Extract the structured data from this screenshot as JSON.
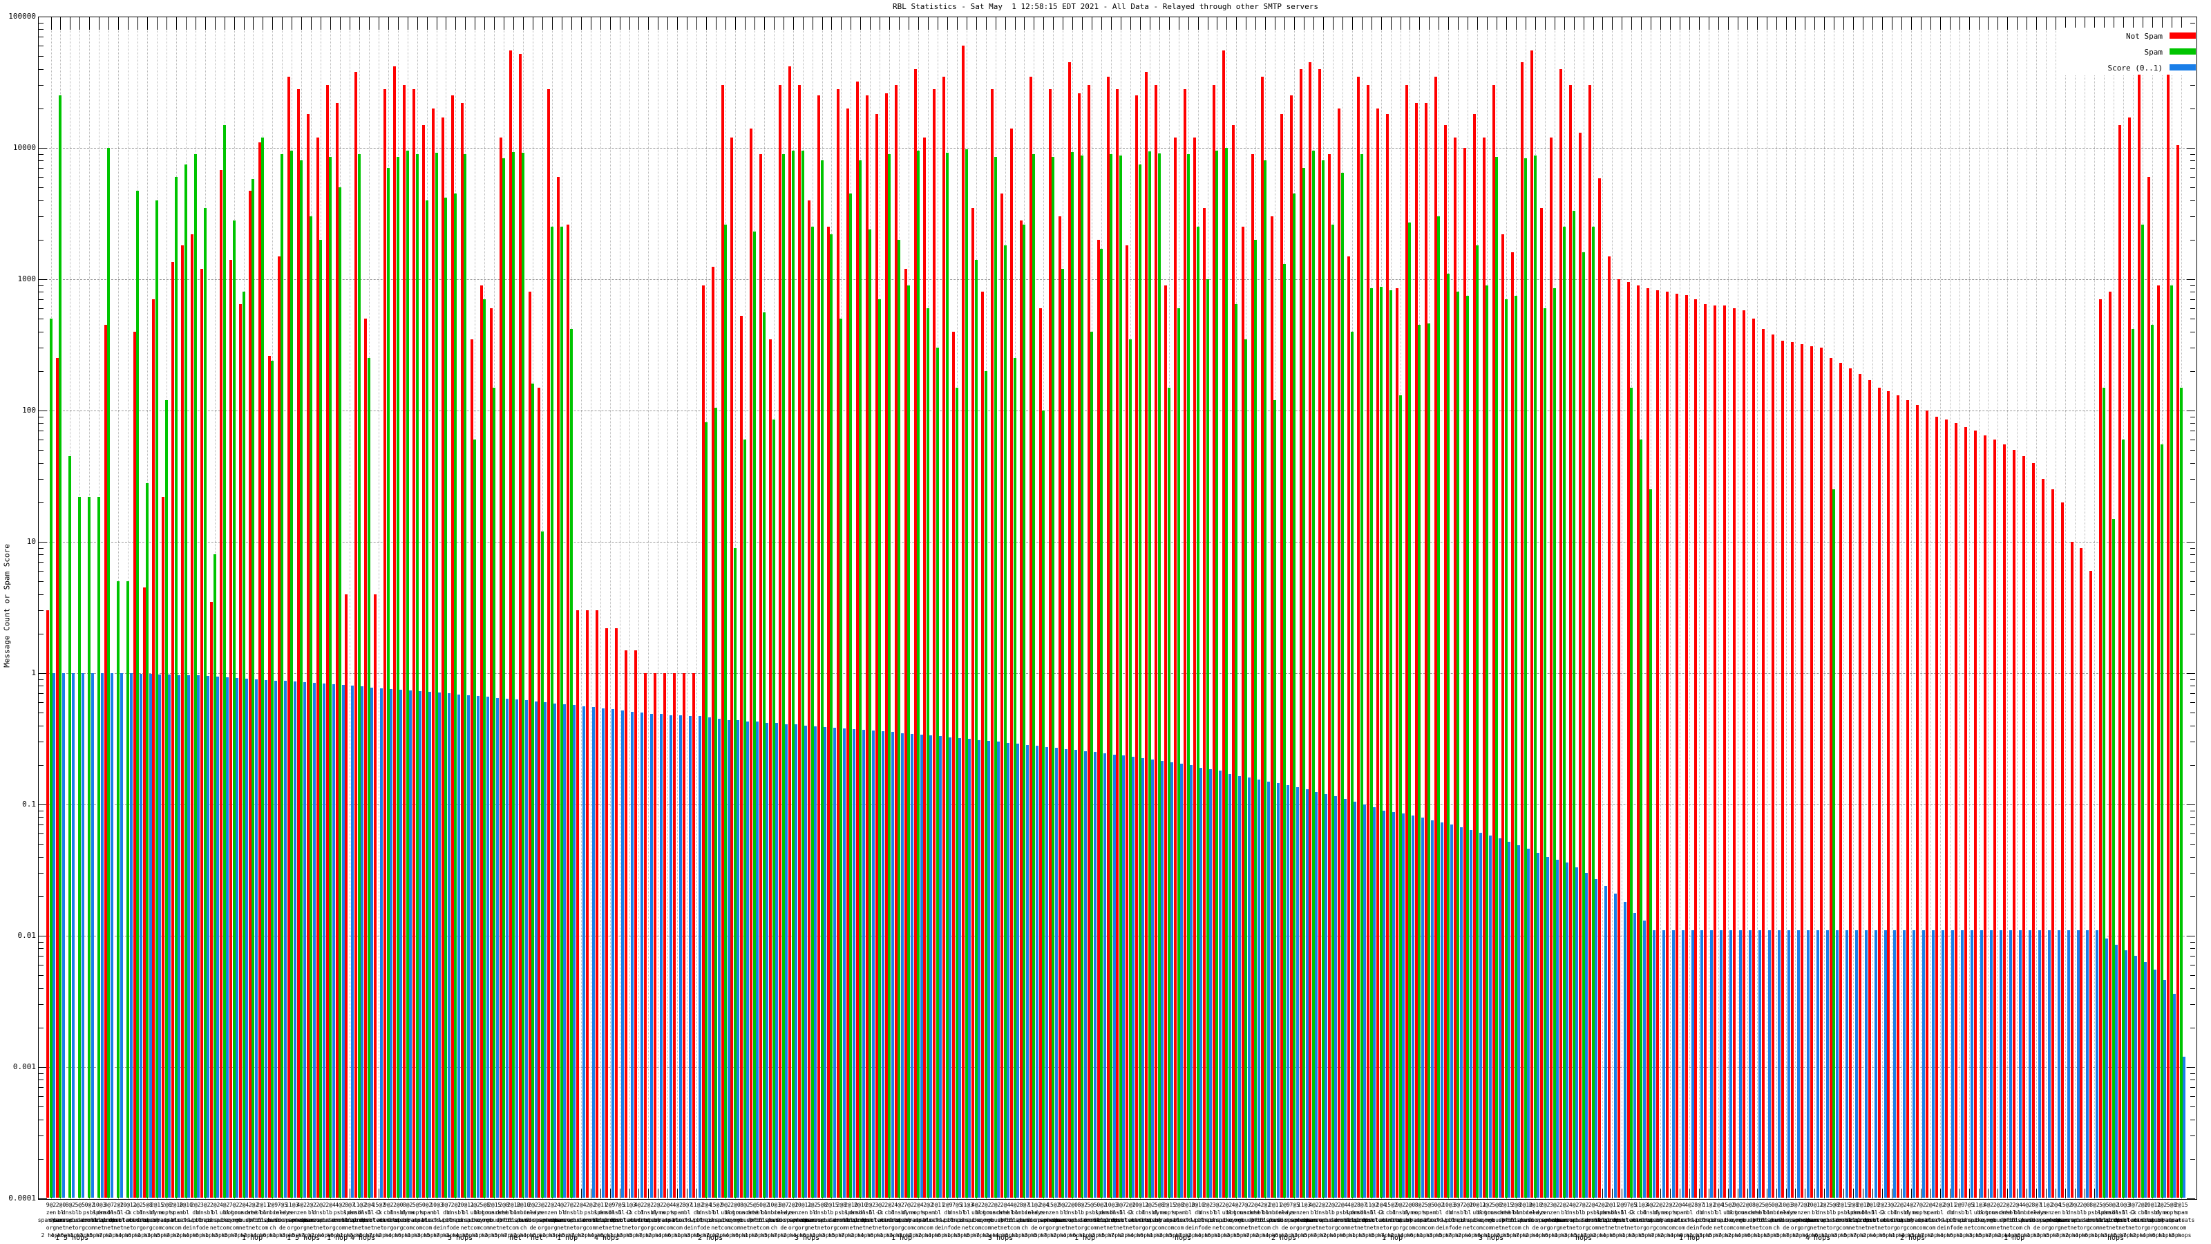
{
  "title": "RBL Statistics - Sat May  1 12:58:15 EDT 2021 - All Data - Relayed through other SMTP servers",
  "y_axis": {
    "label": "Message Count or Spam Score"
  },
  "legend": {
    "items": [
      {
        "label": "Not Spam",
        "color": "#ff0000"
      },
      {
        "label": "Spam",
        "color": "#00c400"
      },
      {
        "label": "Score (0..1)",
        "color": "#1a7ee8"
      }
    ]
  },
  "x_axis": {
    "label_pool": [
      "zen.spamhaus.org",
      "bl.spamcop.net",
      "dnsbl.sorbs.net",
      "b.barracudacentral.org",
      "psbl.surriel.com",
      "spam.dnsbl.sorbs.net",
      "dnsbl-1.uceprotect.net",
      "dnsbl-2.uceprotect.net",
      "ix.dnsbl.manitu.net",
      "cbl.abuseat.org",
      "dnsbl.dronebl.org",
      "dyna.spamrats.com",
      "noptr.spamrats.com",
      "spam.spamrats.com",
      "bl.blocklist.de",
      "db.wpbl.info",
      "dnsbl.inps.de",
      "bl.mailspike.net",
      "ubl.unsubscore.com",
      "bogons.cymru.com",
      "truncate.gbudb.net",
      "dnsbl.spfbl.net",
      "bl.nordspam.com",
      "combined.abuse.ch",
      "relays.bl.kundenserver.de",
      "zen.2.spamhaus.org"
    ],
    "counts_digits": [
      9,
      2,
      8,
      5,
      0,
      10,
      3,
      2,
      10,
      2,
      5,
      2,
      2,
      2,
      2,
      2,
      3,
      2,
      4,
      7,
      2,
      2,
      2,
      2,
      7,
      11,
      4,
      2,
      2,
      2,
      4,
      8,
      11,
      2,
      15
    ],
    "hops_row": [
      {
        "text": "1 5 hops",
        "x": 80
      },
      {
        "text": "1 hop",
        "x": 350
      },
      {
        "text": "1 5 hops",
        "x": 415
      },
      {
        "text": "1 hop",
        "x": 473
      },
      {
        "text": "4 hops",
        "x": 507
      },
      {
        "text": "5 hops",
        "x": 648
      },
      {
        "text": "net",
        "x": 737
      },
      {
        "text": "net",
        "x": 768
      },
      {
        "text": "1 hop",
        "x": 806
      },
      {
        "text": "4 hops",
        "x": 860
      },
      {
        "text": "2 hops",
        "x": 1010
      },
      {
        "text": "3 hops",
        "x": 1150
      },
      {
        "text": "1 hop",
        "x": 1290
      },
      {
        "text": "5 hops",
        "x": 1430
      },
      {
        "text": "1 hop",
        "x": 1555
      },
      {
        "text": "hops",
        "x": 1700
      },
      {
        "text": "2 hops",
        "x": 1840
      },
      {
        "text": "1 hop",
        "x": 2000
      },
      {
        "text": "3 hops",
        "x": 2140
      },
      {
        "text": "hops",
        "x": 2280
      },
      {
        "text": "1 hop",
        "x": 2430
      },
      {
        "text": "4 hops",
        "x": 2613
      },
      {
        "text": "2 hops",
        "x": 2750
      },
      {
        "text": "1 hop",
        "x": 2900
      },
      {
        "text": "hops",
        "x": 3050
      }
    ]
  },
  "chart_data": {
    "type": "bar",
    "log_scale": true,
    "ylim": [
      0.0001,
      100000
    ],
    "y_ticks": [
      "100000",
      "10000",
      "1000",
      "100",
      "10",
      "1",
      "0.1",
      "0.01",
      "0.001",
      "0.0001"
    ],
    "grid": "both",
    "legend_position": "top-right",
    "series_names": [
      "Not Spam",
      "Spam",
      "Score (0..1)"
    ],
    "series_colors": [
      "#ff0000",
      "#00c400",
      "#1a7ee8"
    ],
    "groups": [
      [
        3,
        500,
        1
      ],
      [
        250,
        25000,
        1
      ],
      [
        0,
        45,
        1
      ],
      [
        0,
        22,
        1
      ],
      [
        0,
        22,
        1
      ],
      [
        0,
        22,
        1
      ],
      [
        450,
        10000,
        1
      ],
      [
        0,
        5,
        1
      ],
      [
        0,
        5,
        1
      ],
      [
        400,
        4700,
        0.99
      ],
      [
        4.5,
        28,
        0.99
      ],
      [
        700,
        4000,
        0.98
      ],
      [
        22,
        120,
        0.98
      ],
      [
        1350,
        6000,
        0.97
      ],
      [
        1800,
        7500,
        0.96
      ],
      [
        2200,
        9000,
        0.96
      ],
      [
        1200,
        3500,
        0.95
      ],
      [
        3.5,
        8,
        0.94
      ],
      [
        6800,
        15000,
        0.93
      ],
      [
        1400,
        2800,
        0.92
      ],
      [
        650,
        800,
        0.91
      ],
      [
        4700,
        5800,
        0.9
      ],
      [
        11000,
        12000,
        0.89
      ],
      [
        260,
        240,
        0.88
      ],
      [
        1500,
        9000,
        0.87
      ],
      [
        35000,
        9500,
        0.86
      ],
      [
        28000,
        8000,
        0.85
      ],
      [
        18000,
        3000,
        0.84
      ],
      [
        12000,
        2000,
        0.83
      ],
      [
        30000,
        8500,
        0.82
      ],
      [
        22000,
        5000,
        0.81
      ],
      [
        4,
        0,
        0.8
      ],
      [
        38000,
        9000,
        0.79
      ],
      [
        500,
        250,
        0.78
      ],
      [
        4,
        0,
        0.77
      ],
      [
        28000,
        7000,
        0.76
      ],
      [
        42000,
        8500,
        0.75
      ],
      [
        30000,
        9500,
        0.74
      ],
      [
        28000,
        9000,
        0.73
      ],
      [
        15000,
        4000,
        0.72
      ],
      [
        20000,
        9200,
        0.71
      ],
      [
        17000,
        4200,
        0.7
      ],
      [
        25000,
        4500,
        0.69
      ],
      [
        22000,
        9000,
        0.68
      ],
      [
        350,
        60,
        0.67
      ],
      [
        900,
        700,
        0.66
      ],
      [
        600,
        150,
        0.65
      ],
      [
        12000,
        8300,
        0.64
      ],
      [
        55000,
        9300,
        0.63
      ],
      [
        52000,
        9200,
        0.62
      ],
      [
        800,
        160,
        0.61
      ],
      [
        150,
        12,
        0.6
      ],
      [
        28000,
        2500,
        0.59
      ],
      [
        6000,
        2500,
        0.58
      ],
      [
        2600,
        420,
        0.57
      ],
      [
        3,
        0,
        0.56
      ],
      [
        3,
        0,
        0.55
      ],
      [
        3,
        0,
        0.54
      ],
      [
        2.2,
        0,
        0.53
      ],
      [
        2.2,
        0,
        0.52
      ],
      [
        1.5,
        0,
        0.51
      ],
      [
        1.5,
        0,
        0.5
      ],
      [
        1,
        0,
        0.49
      ],
      [
        1,
        0,
        0.49
      ],
      [
        1,
        0,
        0.48
      ],
      [
        1,
        0,
        0.48
      ],
      [
        1,
        0,
        0.47
      ],
      [
        1,
        0,
        0.47
      ],
      [
        900,
        81,
        0.46
      ],
      [
        1250,
        105,
        0.45
      ],
      [
        30000,
        2600,
        0.44
      ],
      [
        12000,
        9,
        0.44
      ],
      [
        525,
        60,
        0.43
      ],
      [
        14000,
        2300,
        0.43
      ],
      [
        9000,
        560,
        0.42
      ],
      [
        350,
        85,
        0.42
      ],
      [
        30000,
        9000,
        0.41
      ],
      [
        42000,
        9500,
        0.41
      ],
      [
        30000,
        9500,
        0.4
      ],
      [
        4000,
        2500,
        0.395
      ],
      [
        25000,
        8000,
        0.39
      ],
      [
        2500,
        2200,
        0.385
      ],
      [
        28000,
        500,
        0.38
      ],
      [
        20000,
        4500,
        0.375
      ],
      [
        32000,
        8000,
        0.37
      ],
      [
        25000,
        2400,
        0.365
      ],
      [
        18000,
        700,
        0.36
      ],
      [
        26000,
        9000,
        0.355
      ],
      [
        30000,
        2000,
        0.35
      ],
      [
        1200,
        900,
        0.345
      ],
      [
        40000,
        9500,
        0.34
      ],
      [
        12000,
        600,
        0.335
      ],
      [
        28000,
        300,
        0.33
      ],
      [
        35000,
        9200,
        0.325
      ],
      [
        400,
        150,
        0.32
      ],
      [
        60000,
        9800,
        0.315
      ],
      [
        3500,
        1400,
        0.31
      ],
      [
        800,
        200,
        0.305
      ],
      [
        28000,
        8500,
        0.3
      ],
      [
        4500,
        1800,
        0.295
      ],
      [
        14000,
        250,
        0.29
      ],
      [
        2800,
        2600,
        0.285
      ],
      [
        35000,
        9000,
        0.28
      ],
      [
        600,
        100,
        0.275
      ],
      [
        28000,
        8500,
        0.27
      ],
      [
        3000,
        1200,
        0.265
      ],
      [
        45000,
        9300,
        0.26
      ],
      [
        26000,
        8800,
        0.255
      ],
      [
        30000,
        400,
        0.25
      ],
      [
        2000,
        1700,
        0.245
      ],
      [
        35000,
        9000,
        0.24
      ],
      [
        28000,
        8700,
        0.235
      ],
      [
        1800,
        350,
        0.23
      ],
      [
        25000,
        7500,
        0.225
      ],
      [
        38000,
        9400,
        0.22
      ],
      [
        30000,
        9100,
        0.215
      ],
      [
        900,
        150,
        0.21
      ],
      [
        12000,
        600,
        0.205
      ],
      [
        28000,
        9000,
        0.2
      ],
      [
        12000,
        2500,
        0.19
      ],
      [
        3500,
        1000,
        0.185
      ],
      [
        30000,
        9500,
        0.18
      ],
      [
        55000,
        10000,
        0.17
      ],
      [
        15000,
        650,
        0.165
      ],
      [
        2500,
        350,
        0.16
      ],
      [
        9000,
        2000,
        0.155
      ],
      [
        35000,
        8000,
        0.15
      ],
      [
        3000,
        120,
        0.145
      ],
      [
        18000,
        1300,
        0.14
      ],
      [
        25000,
        4500,
        0.135
      ],
      [
        40000,
        7000,
        0.13
      ],
      [
        45000,
        9500,
        0.125
      ],
      [
        40000,
        8000,
        0.12
      ],
      [
        9000,
        2600,
        0.115
      ],
      [
        20000,
        6500,
        0.11
      ],
      [
        1500,
        400,
        0.105
      ],
      [
        35000,
        9000,
        0.1
      ],
      [
        30000,
        850,
        0.095
      ],
      [
        20000,
        870,
        0.09
      ],
      [
        18000,
        820,
        0.088
      ],
      [
        850,
        130,
        0.085
      ],
      [
        30000,
        2700,
        0.082
      ],
      [
        22000,
        450,
        0.079
      ],
      [
        22000,
        460,
        0.076
      ],
      [
        35000,
        3000,
        0.073
      ],
      [
        15000,
        1100,
        0.07
      ],
      [
        12000,
        800,
        0.067
      ],
      [
        10000,
        750,
        0.064
      ],
      [
        18000,
        1800,
        0.061
      ],
      [
        12000,
        900,
        0.058
      ],
      [
        30000,
        8500,
        0.055
      ],
      [
        2200,
        700,
        0.052
      ],
      [
        1600,
        750,
        0.049
      ],
      [
        45000,
        8300,
        0.046
      ],
      [
        55000,
        8800,
        0.043
      ],
      [
        3500,
        600,
        0.04
      ],
      [
        12000,
        850,
        0.038
      ],
      [
        40000,
        2500,
        0.036
      ],
      [
        30000,
        3300,
        0.033
      ],
      [
        13000,
        1600,
        0.03
      ],
      [
        30000,
        2500,
        0.027
      ],
      [
        5900,
        0,
        0.024
      ],
      [
        1500,
        0,
        0.021
      ],
      [
        1000,
        0,
        0.018
      ],
      [
        950,
        150,
        0.015
      ],
      [
        900,
        60,
        0.013
      ],
      [
        850,
        25,
        0.011
      ],
      [
        820,
        0,
        0.011
      ],
      [
        800,
        0,
        0.011
      ],
      [
        780,
        0,
        0.011
      ],
      [
        760,
        0,
        0.011
      ],
      [
        700,
        0,
        0.011
      ],
      [
        650,
        0,
        0.011
      ],
      [
        630,
        0,
        0.011
      ],
      [
        630,
        0,
        0.011
      ],
      [
        600,
        0,
        0.011
      ],
      [
        580,
        0,
        0.011
      ],
      [
        500,
        0,
        0.011
      ],
      [
        420,
        0,
        0.011
      ],
      [
        380,
        0,
        0.011
      ],
      [
        340,
        0,
        0.011
      ],
      [
        330,
        0,
        0.011
      ],
      [
        320,
        0,
        0.011
      ],
      [
        310,
        0,
        0.011
      ],
      [
        300,
        0,
        0.011
      ],
      [
        250,
        25,
        0.011
      ],
      [
        230,
        0,
        0.011
      ],
      [
        210,
        0,
        0.011
      ],
      [
        190,
        0,
        0.011
      ],
      [
        170,
        0,
        0.011
      ],
      [
        150,
        0,
        0.011
      ],
      [
        140,
        0,
        0.011
      ],
      [
        130,
        0,
        0.011
      ],
      [
        120,
        0,
        0.011
      ],
      [
        110,
        0,
        0.011
      ],
      [
        100,
        0,
        0.011
      ],
      [
        90,
        0,
        0.011
      ],
      [
        85,
        0,
        0.011
      ],
      [
        80,
        0,
        0.011
      ],
      [
        75,
        0,
        0.011
      ],
      [
        70,
        0,
        0.011
      ],
      [
        65,
        0,
        0.011
      ],
      [
        60,
        0,
        0.011
      ],
      [
        55,
        0,
        0.011
      ],
      [
        50,
        0,
        0.011
      ],
      [
        45,
        0,
        0.011
      ],
      [
        40,
        0,
        0.011
      ],
      [
        30,
        0,
        0.011
      ],
      [
        25,
        0,
        0.011
      ],
      [
        20,
        0,
        0.011
      ],
      [
        10,
        0,
        0.011
      ],
      [
        9,
        0,
        0.011
      ],
      [
        6,
        0,
        0.011
      ],
      [
        700,
        150,
        0.0095
      ],
      [
        800,
        15,
        0.0085
      ],
      [
        15000,
        60,
        0.0078
      ],
      [
        17000,
        420,
        0.007
      ],
      [
        40000,
        2600,
        0.0063
      ],
      [
        6000,
        450,
        0.0055
      ],
      [
        900,
        55,
        0.0046
      ],
      [
        40000,
        900,
        0.0036
      ],
      [
        10500,
        150,
        0.0012
      ]
    ]
  }
}
